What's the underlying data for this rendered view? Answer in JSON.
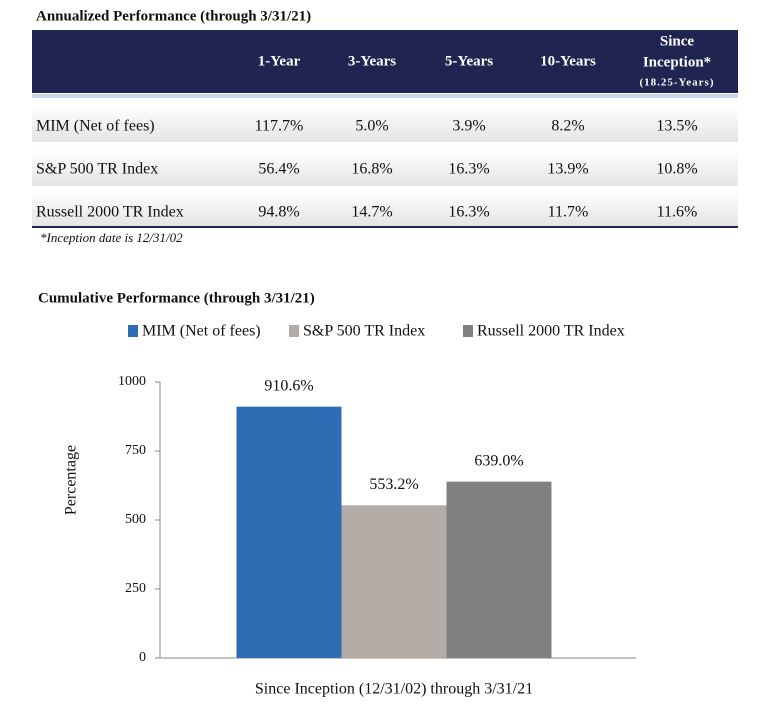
{
  "table": {
    "title": "Annualized Performance (through 3/31/21)",
    "columns": [
      "1-Year",
      "3-Years",
      "5-Years",
      "10-Years"
    ],
    "last_column": {
      "line1": "Since",
      "line2": "Inception*",
      "note": "(18.25-Years)"
    },
    "rows": [
      [
        "MIM (Net of fees)",
        "117.7%",
        "5.0%",
        "3.9%",
        "8.2%",
        "13.5%"
      ],
      [
        "S&P 500 TR Index",
        "56.4%",
        "16.8%",
        "16.3%",
        "13.9%",
        "10.8%"
      ],
      [
        "Russell 2000 TR Index",
        "94.8%",
        "14.7%",
        "16.3%",
        "11.7%",
        "11.6%"
      ]
    ],
    "footnote": "*Inception date is 12/31/02"
  },
  "chart_data": {
    "type": "bar",
    "title": "Cumulative Performance (through 3/31/21)",
    "categories": [
      "Since Inception (12/31/02) through 3/31/21"
    ],
    "ylabel": "Percentage",
    "series": [
      {
        "name": "MIM (Net of fees)",
        "color": "#2e6db4",
        "values": [
          910.6
        ],
        "value_labels": [
          "910.6%"
        ]
      },
      {
        "name": "S&P 500 TR Index",
        "color": "#b3aca6",
        "values": [
          553.2
        ],
        "value_labels": [
          "553.2%"
        ]
      },
      {
        "name": "Russell 2000 TR Index",
        "color": "#808080",
        "values": [
          639.0
        ],
        "value_labels": [
          "639.0%"
        ]
      }
    ],
    "ylim": [
      0,
      1000
    ],
    "yticks": [
      0,
      250,
      500,
      750,
      1000
    ],
    "grid": false,
    "legend": "top"
  }
}
